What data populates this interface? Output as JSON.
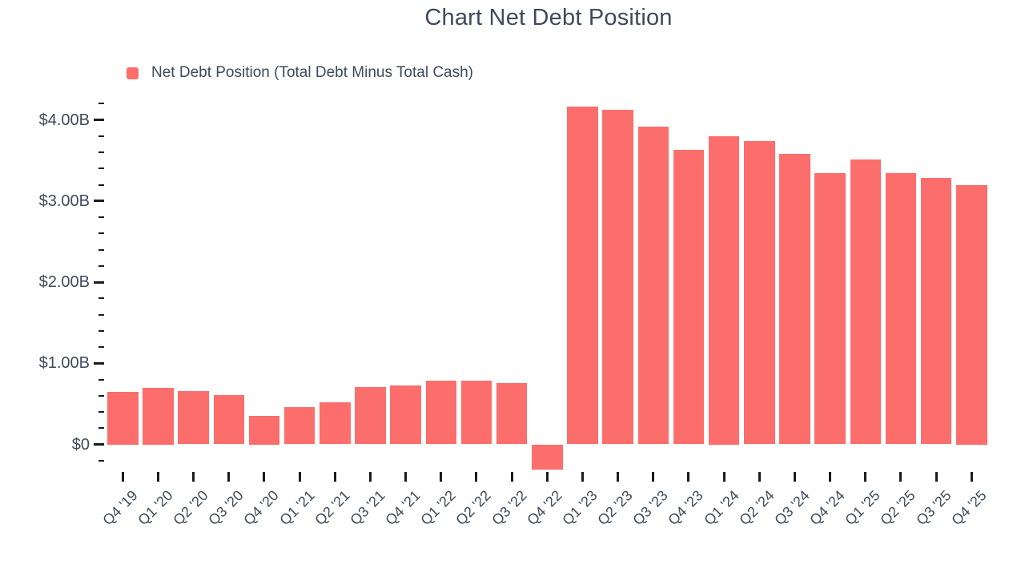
{
  "title": "Chart Net Debt Position",
  "legend": {
    "label": "Net Debt Position (Total Debt Minus Total Cash)",
    "swatch_color": "#fc6e6c"
  },
  "colors": {
    "bar": "#fc6e6c",
    "text": "#3e4a5b",
    "tick": "#1c1c1c",
    "background": "#ffffff"
  },
  "chart_data": {
    "type": "bar",
    "title": "Chart Net Debt Position",
    "unit": "billions of dollars",
    "grid": false,
    "legend_position": "top-left",
    "categories": [
      "Q4 '19",
      "Q1 '20",
      "Q2 '20",
      "Q3 '20",
      "Q4 '20",
      "Q1 '21",
      "Q2 '21",
      "Q3 '21",
      "Q4 '21",
      "Q1 '22",
      "Q2 '22",
      "Q3 '22",
      "Q4 '22",
      "Q1 '23",
      "Q2 '23",
      "Q3 '23",
      "Q4 '23",
      "Q1 '24",
      "Q2 '24",
      "Q3 '24",
      "Q4 '24",
      "Q1 '25",
      "Q2 '25",
      "Q3 '25",
      "Q4 '25"
    ],
    "series": [
      {
        "name": "Net Debt Position (Total Debt Minus Total Cash)",
        "color": "#fc6e6c",
        "values": [
          0.65,
          0.7,
          0.66,
          0.61,
          0.35,
          0.46,
          0.52,
          0.71,
          0.73,
          0.79,
          0.79,
          0.76,
          -0.31,
          4.16,
          4.12,
          3.92,
          3.63,
          3.8,
          3.74,
          3.58,
          3.34,
          3.51,
          3.34,
          3.28,
          3.2
        ]
      }
    ],
    "ylim": [
      -0.4,
      4.3
    ],
    "y_major_ticks": [
      {
        "value": 0,
        "label": "$0"
      },
      {
        "value": 1,
        "label": "$1.00B"
      },
      {
        "value": 2,
        "label": "$2.00B"
      },
      {
        "value": 3,
        "label": "$3.00B"
      },
      {
        "value": 4,
        "label": "$4.00B"
      }
    ],
    "y_minor_tick_step": 0.2,
    "y_minor_tick_range": [
      -0.2,
      4.2
    ]
  }
}
